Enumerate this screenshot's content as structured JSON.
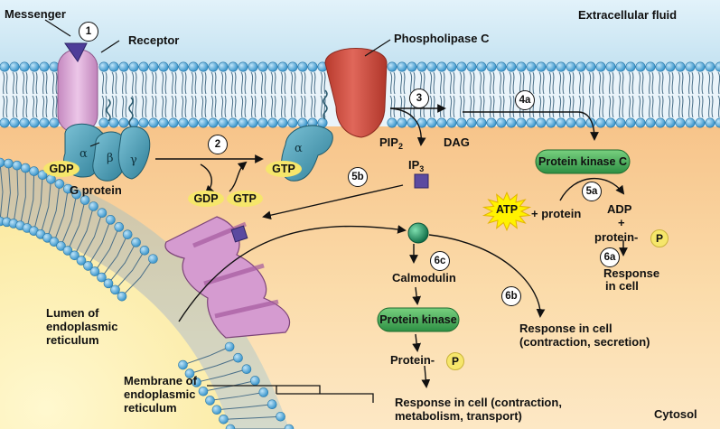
{
  "labels": {
    "messenger": "Messenger",
    "receptor": "Receptor",
    "extracellular_fluid": "Extracellular fluid",
    "phospholipase_c": "Phospholipase C",
    "pip2": "PIP",
    "pip2_sub": "2",
    "dag": "DAG",
    "ip3": "IP",
    "ip3_sub": "3",
    "g_protein": "G protein",
    "lumen_line1": "Lumen of",
    "lumen_line2": "endoplasmic",
    "lumen_line3": "reticulum",
    "membrane_line1": "Membrane of",
    "membrane_line2": "endoplasmic",
    "membrane_line3": "reticulum",
    "cytosol": "Cytosol",
    "calmodulin": "Calmodulin",
    "plus_protein": "+ protein",
    "adp": "ADP",
    "plus": "+",
    "protein_dash_right": "protein-",
    "protein_dash_left": "Protein-",
    "response_6a_line1": "Response",
    "response_6a_line2": "in cell",
    "response_6b_line1": "Response in cell",
    "response_6b_line2": "(contraction, secretion)",
    "response_6c_line1": "Response in cell (contraction,",
    "response_6c_line2": "metabolism, transport)"
  },
  "greek": {
    "alpha_left": "α",
    "beta": "β",
    "gamma": "γ",
    "alpha_right": "α"
  },
  "molecules": {
    "gdp_bound": "GDP",
    "gtp_bound": "GTP",
    "gdp_free": "GDP",
    "gtp_free": "GTP",
    "atp": "ATP",
    "phosphate_right": "P",
    "phosphate_left": "P"
  },
  "enzymes": {
    "protein_kinase_c": "Protein kinase C",
    "protein_kinase": "Protein kinase"
  },
  "steps": {
    "s1": "1",
    "s2": "2",
    "s3": "3",
    "s4a": "4a",
    "s5a": "5a",
    "s5b": "5b",
    "s6a": "6a",
    "s6b": "6b",
    "s6c": "6c"
  },
  "colors": {
    "extracellular": "#cfe7f3",
    "cytosol_top": "#f9c98f",
    "er_lumen": "#fdf1b4",
    "lipid_head": "#5aaede",
    "receptor": "#d6a4d2",
    "g_protein": "#4a9bb3",
    "phospholipase_c": "#cf4a3c",
    "enzyme_green": "#3aa650",
    "phosphate_yellow": "#f6e66b",
    "channel": "#c886c0",
    "ip3_square": "#5b4aa0",
    "calcium": "#1d8a5e"
  }
}
